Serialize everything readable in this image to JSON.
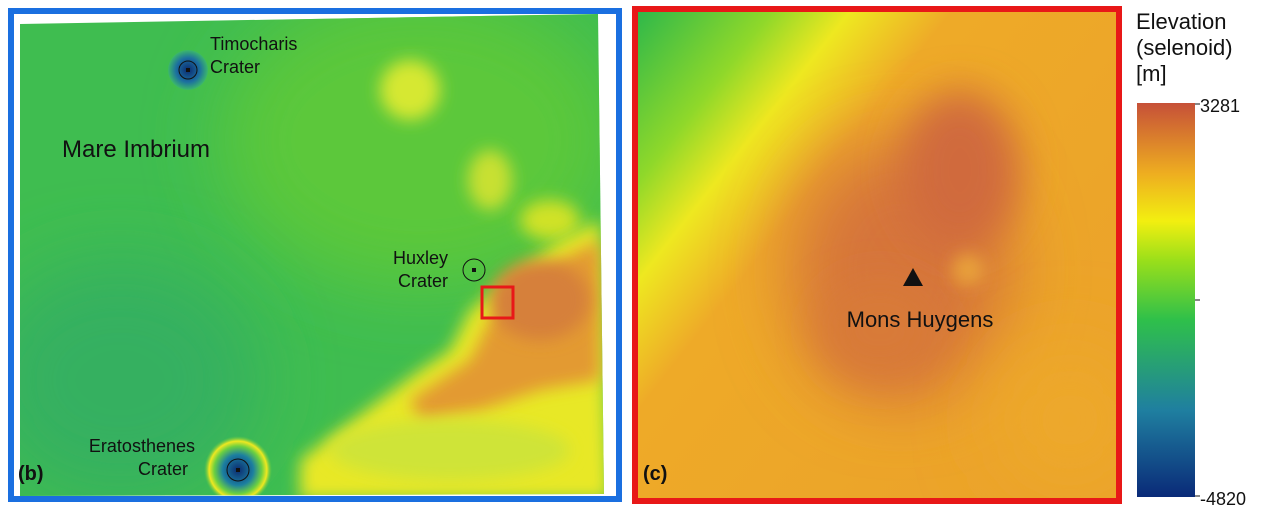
{
  "panel_b": {
    "label": "(b)",
    "features": [
      {
        "lines": [
          "Timocharis",
          "Crater"
        ]
      },
      {
        "lines": [
          "Mare Imbrium"
        ]
      },
      {
        "lines": [
          "Huxley",
          "Crater"
        ]
      },
      {
        "lines": [
          "Eratosthenes",
          "Crater"
        ]
      }
    ]
  },
  "panel_c": {
    "label": "(c)",
    "feature": "Mons Huygens"
  },
  "colorbar": {
    "title_lines": [
      "Elevation",
      "(selenoid)",
      "[m]"
    ],
    "max": 3281,
    "min": -4820
  }
}
